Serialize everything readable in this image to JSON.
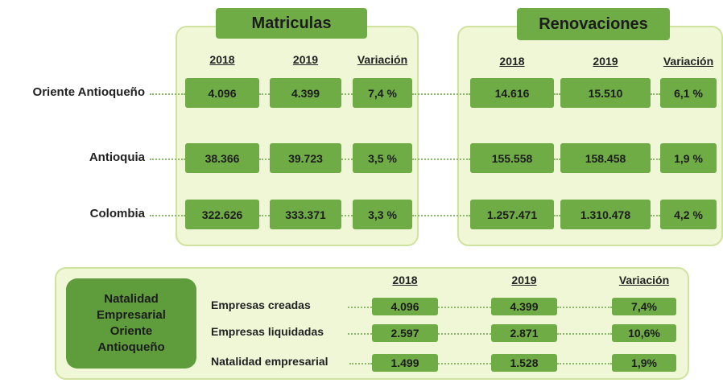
{
  "matriculas": {
    "title": "Matriculas",
    "headers": [
      "2018",
      "2019",
      "Variación"
    ]
  },
  "renovaciones": {
    "title": "Renovaciones",
    "headers": [
      "2018",
      "2019",
      "Variación"
    ]
  },
  "regions": [
    {
      "name": "Oriente Antioqueño",
      "matriculas": [
        "4.096",
        "4.399",
        "7,4 %"
      ],
      "renovaciones": [
        "14.616",
        "15.510",
        "6,1 %"
      ]
    },
    {
      "name": "Antioquia",
      "matriculas": [
        "38.366",
        "39.723",
        "3,5 %"
      ],
      "renovaciones": [
        "155.558",
        "158.458",
        "1,9 %"
      ]
    },
    {
      "name": "Colombia",
      "matriculas": [
        "322.626",
        "333.371",
        "3,3 %"
      ],
      "renovaciones": [
        "1.257.471",
        "1.310.478",
        "4,2 %"
      ]
    }
  ],
  "natalidad": {
    "title_lines": [
      "Natalidad",
      "Empresarial",
      "Oriente",
      "Antioqueño"
    ],
    "headers": [
      "2018",
      "2019",
      "Variación"
    ],
    "rows": [
      {
        "label": "Empresas creadas",
        "values": [
          "4.096",
          "4.399",
          "7,4%"
        ]
      },
      {
        "label": "Empresas liquidadas",
        "values": [
          "2.597",
          "2.871",
          "10,6%"
        ]
      },
      {
        "label": "Natalidad empresarial",
        "values": [
          "1.499",
          "1.528",
          "1,9%"
        ]
      }
    ]
  }
}
